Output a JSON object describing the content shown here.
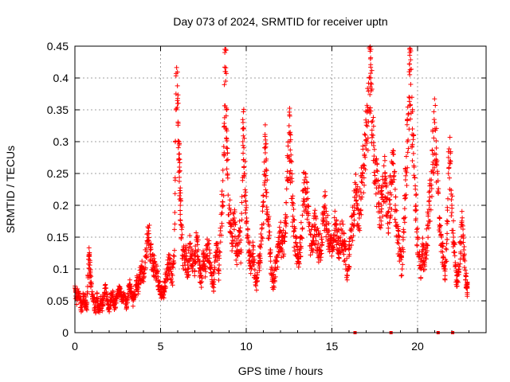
{
  "chart_data": {
    "type": "scatter",
    "title": "Day 073 of 2024, SRMTID for receiver uptn",
    "xlabel": "GPS time / hours",
    "ylabel": "SRMTID / TECUs",
    "xlim": [
      0,
      24
    ],
    "ylim": [
      0,
      0.45
    ],
    "xticks": [
      0,
      5,
      10,
      15,
      20
    ],
    "yticks": [
      0,
      0.05,
      0.1,
      0.15,
      0.2,
      0.25,
      0.3,
      0.35,
      0.4,
      0.45
    ],
    "xtick_labels": [
      "0",
      "5",
      "10",
      "15",
      "20"
    ],
    "ytick_labels": [
      "0",
      "0.05",
      "0.1",
      "0.15",
      "0.2",
      "0.25",
      "0.3",
      "0.35",
      "0.4",
      "0.45"
    ],
    "grid": true,
    "marker": "plus",
    "color": "#ff0000",
    "series": [
      {
        "name": "SRMTID",
        "points": [
          [
            0.0,
            0.07
          ],
          [
            0.1,
            0.055
          ],
          [
            0.2,
            0.065
          ],
          [
            0.3,
            0.05
          ],
          [
            0.4,
            0.04
          ],
          [
            0.5,
            0.06
          ],
          [
            0.6,
            0.05
          ],
          [
            0.7,
            0.045
          ],
          [
            0.8,
            0.115
          ],
          [
            0.85,
            0.12
          ],
          [
            0.9,
            0.09
          ],
          [
            1.0,
            0.06
          ],
          [
            1.1,
            0.05
          ],
          [
            1.2,
            0.04
          ],
          [
            1.3,
            0.055
          ],
          [
            1.4,
            0.035
          ],
          [
            1.5,
            0.05
          ],
          [
            1.6,
            0.045
          ],
          [
            1.7,
            0.06
          ],
          [
            1.8,
            0.07
          ],
          [
            1.9,
            0.05
          ],
          [
            2.0,
            0.04
          ],
          [
            2.1,
            0.055
          ],
          [
            2.2,
            0.06
          ],
          [
            2.3,
            0.045
          ],
          [
            2.4,
            0.05
          ],
          [
            2.5,
            0.065
          ],
          [
            2.6,
            0.07
          ],
          [
            2.7,
            0.055
          ],
          [
            2.8,
            0.05
          ],
          [
            2.9,
            0.06
          ],
          [
            3.0,
            0.045
          ],
          [
            3.1,
            0.06
          ],
          [
            3.2,
            0.075
          ],
          [
            3.3,
            0.065
          ],
          [
            3.4,
            0.05
          ],
          [
            3.5,
            0.06
          ],
          [
            3.6,
            0.08
          ],
          [
            3.7,
            0.07
          ],
          [
            3.8,
            0.09
          ],
          [
            3.9,
            0.1
          ],
          [
            4.0,
            0.085
          ],
          [
            4.1,
            0.11
          ],
          [
            4.2,
            0.14
          ],
          [
            4.3,
            0.16
          ],
          [
            4.4,
            0.13
          ],
          [
            4.5,
            0.12
          ],
          [
            4.6,
            0.11
          ],
          [
            4.7,
            0.1
          ],
          [
            4.8,
            0.095
          ],
          [
            4.9,
            0.08
          ],
          [
            5.0,
            0.07
          ],
          [
            5.1,
            0.06
          ],
          [
            5.2,
            0.065
          ],
          [
            5.3,
            0.085
          ],
          [
            5.4,
            0.1
          ],
          [
            5.5,
            0.11
          ],
          [
            5.6,
            0.1
          ],
          [
            5.7,
            0.09
          ],
          [
            5.8,
            0.12
          ],
          [
            5.9,
            0.375
          ],
          [
            6.0,
            0.36
          ],
          [
            6.05,
            0.3
          ],
          [
            6.1,
            0.26
          ],
          [
            6.15,
            0.2
          ],
          [
            6.2,
            0.17
          ],
          [
            6.3,
            0.13
          ],
          [
            6.4,
            0.11
          ],
          [
            6.5,
            0.12
          ],
          [
            6.6,
            0.1
          ],
          [
            6.7,
            0.14
          ],
          [
            6.8,
            0.12
          ],
          [
            6.9,
            0.105
          ],
          [
            7.0,
            0.11
          ],
          [
            7.1,
            0.15
          ],
          [
            7.2,
            0.13
          ],
          [
            7.3,
            0.09
          ],
          [
            7.4,
            0.08
          ],
          [
            7.5,
            0.12
          ],
          [
            7.6,
            0.1
          ],
          [
            7.7,
            0.13
          ],
          [
            7.8,
            0.14
          ],
          [
            7.9,
            0.11
          ],
          [
            8.0,
            0.09
          ],
          [
            8.1,
            0.08
          ],
          [
            8.2,
            0.12
          ],
          [
            8.3,
            0.13
          ],
          [
            8.4,
            0.1
          ],
          [
            8.5,
            0.16
          ],
          [
            8.6,
            0.2
          ],
          [
            8.7,
            0.28
          ],
          [
            8.75,
            0.44
          ],
          [
            8.8,
            0.41
          ],
          [
            8.85,
            0.35
          ],
          [
            8.9,
            0.25
          ],
          [
            9.0,
            0.2
          ],
          [
            9.1,
            0.17
          ],
          [
            9.2,
            0.15
          ],
          [
            9.3,
            0.18
          ],
          [
            9.4,
            0.14
          ],
          [
            9.5,
            0.12
          ],
          [
            9.6,
            0.16
          ],
          [
            9.7,
            0.13
          ],
          [
            9.8,
            0.3
          ],
          [
            9.85,
            0.32
          ],
          [
            9.9,
            0.25
          ],
          [
            10.0,
            0.2
          ],
          [
            10.1,
            0.15
          ],
          [
            10.2,
            0.12
          ],
          [
            10.3,
            0.1
          ],
          [
            10.4,
            0.13
          ],
          [
            10.5,
            0.09
          ],
          [
            10.6,
            0.08
          ],
          [
            10.7,
            0.11
          ],
          [
            10.8,
            0.12
          ],
          [
            10.9,
            0.15
          ],
          [
            11.0,
            0.2
          ],
          [
            11.1,
            0.29
          ],
          [
            11.15,
            0.27
          ],
          [
            11.2,
            0.22
          ],
          [
            11.3,
            0.17
          ],
          [
            11.4,
            0.13
          ],
          [
            11.5,
            0.09
          ],
          [
            11.6,
            0.08
          ],
          [
            11.7,
            0.1
          ],
          [
            11.8,
            0.12
          ],
          [
            11.9,
            0.14
          ],
          [
            12.0,
            0.16
          ],
          [
            12.1,
            0.13
          ],
          [
            12.2,
            0.15
          ],
          [
            12.3,
            0.18
          ],
          [
            12.4,
            0.24
          ],
          [
            12.5,
            0.325
          ],
          [
            12.55,
            0.3
          ],
          [
            12.6,
            0.27
          ],
          [
            12.7,
            0.2
          ],
          [
            12.8,
            0.16
          ],
          [
            12.9,
            0.14
          ],
          [
            13.0,
            0.12
          ],
          [
            13.1,
            0.13
          ],
          [
            13.2,
            0.15
          ],
          [
            13.3,
            0.2
          ],
          [
            13.4,
            0.24
          ],
          [
            13.5,
            0.22
          ],
          [
            13.6,
            0.19
          ],
          [
            13.7,
            0.16
          ],
          [
            13.8,
            0.14
          ],
          [
            13.9,
            0.15
          ],
          [
            14.0,
            0.17
          ],
          [
            14.1,
            0.16
          ],
          [
            14.2,
            0.14
          ],
          [
            14.3,
            0.13
          ],
          [
            14.4,
            0.15
          ],
          [
            14.5,
            0.18
          ],
          [
            14.6,
            0.2
          ],
          [
            14.7,
            0.17
          ],
          [
            14.8,
            0.16
          ],
          [
            14.9,
            0.14
          ],
          [
            15.0,
            0.13
          ],
          [
            15.1,
            0.15
          ],
          [
            15.2,
            0.17
          ],
          [
            15.3,
            0.16
          ],
          [
            15.4,
            0.14
          ],
          [
            15.5,
            0.15
          ],
          [
            15.6,
            0.16
          ],
          [
            15.7,
            0.14
          ],
          [
            15.8,
            0.13
          ],
          [
            15.9,
            0.09
          ],
          [
            16.0,
            0.12
          ],
          [
            16.1,
            0.15
          ],
          [
            16.2,
            0.17
          ],
          [
            16.3,
            0.2
          ],
          [
            16.4,
            0.22
          ],
          [
            16.5,
            0.2
          ],
          [
            16.6,
            0.18
          ],
          [
            16.7,
            0.22
          ],
          [
            16.8,
            0.25
          ],
          [
            16.9,
            0.28
          ],
          [
            17.0,
            0.33
          ],
          [
            17.1,
            0.35
          ],
          [
            17.2,
            0.4
          ],
          [
            17.25,
            0.43
          ],
          [
            17.3,
            0.38
          ],
          [
            17.4,
            0.31
          ],
          [
            17.5,
            0.27
          ],
          [
            17.6,
            0.24
          ],
          [
            17.7,
            0.22
          ],
          [
            17.8,
            0.19
          ],
          [
            17.9,
            0.2
          ],
          [
            18.0,
            0.23
          ],
          [
            18.1,
            0.25
          ],
          [
            18.2,
            0.21
          ],
          [
            18.3,
            0.19
          ],
          [
            18.4,
            0.22
          ],
          [
            18.5,
            0.24
          ],
          [
            18.6,
            0.28
          ],
          [
            18.7,
            0.2
          ],
          [
            18.8,
            0.17
          ],
          [
            18.9,
            0.14
          ],
          [
            19.0,
            0.12
          ],
          [
            19.1,
            0.1
          ],
          [
            19.2,
            0.18
          ],
          [
            19.3,
            0.24
          ],
          [
            19.4,
            0.3
          ],
          [
            19.5,
            0.37
          ],
          [
            19.55,
            0.44
          ],
          [
            19.6,
            0.39
          ],
          [
            19.7,
            0.32
          ],
          [
            19.8,
            0.26
          ],
          [
            19.9,
            0.2
          ],
          [
            20.0,
            0.15
          ],
          [
            20.1,
            0.12
          ],
          [
            20.2,
            0.1
          ],
          [
            20.3,
            0.13
          ],
          [
            20.4,
            0.11
          ],
          [
            20.5,
            0.14
          ],
          [
            20.6,
            0.17
          ],
          [
            20.7,
            0.2
          ],
          [
            20.8,
            0.24
          ],
          [
            20.9,
            0.28
          ],
          [
            21.0,
            0.33
          ],
          [
            21.1,
            0.29
          ],
          [
            21.2,
            0.22
          ],
          [
            21.3,
            0.18
          ],
          [
            21.4,
            0.15
          ],
          [
            21.5,
            0.12
          ],
          [
            21.6,
            0.1
          ],
          [
            21.7,
            0.14
          ],
          [
            21.8,
            0.25
          ],
          [
            21.9,
            0.27
          ],
          [
            22.0,
            0.2
          ],
          [
            22.1,
            0.15
          ],
          [
            22.2,
            0.11
          ],
          [
            22.3,
            0.08
          ],
          [
            22.4,
            0.1
          ],
          [
            22.5,
            0.14
          ],
          [
            22.6,
            0.17
          ],
          [
            22.7,
            0.13
          ],
          [
            22.8,
            0.09
          ],
          [
            22.9,
            0.07
          ]
        ]
      }
    ],
    "zero_markers_x": [
      16.35,
      18.45,
      21.2,
      22.05
    ]
  }
}
